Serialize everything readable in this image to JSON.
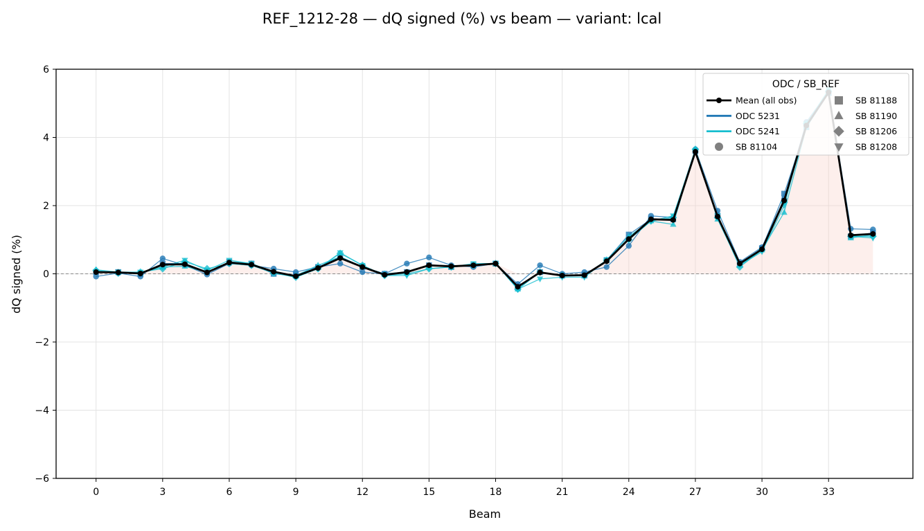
{
  "chart_data": {
    "type": "line",
    "title": "REF_1212-28  —  dQ signed (%) vs beam  —  variant: lcal",
    "xlabel": "Beam",
    "ylabel": "dQ signed (%)",
    "xlim": [
      -1.8,
      36.8
    ],
    "ylim": [
      -6,
      6
    ],
    "xticks": [
      0,
      3,
      6,
      9,
      12,
      15,
      18,
      21,
      24,
      27,
      30,
      33
    ],
    "yticks": [
      -6,
      -4,
      -2,
      0,
      2,
      4,
      6
    ],
    "ytick_labels": [
      "−6",
      "−4",
      "−2",
      "0",
      "2",
      "4",
      "6"
    ],
    "grid": true,
    "zero_line": true,
    "legend_placement": "upper right",
    "legend_title": "ODC / SB_REF",
    "legend": [
      {
        "label": "Mean (all obs)",
        "kind": "mean"
      },
      {
        "label": "ODC 5231",
        "kind": "line",
        "color": "#1f77b4"
      },
      {
        "label": "ODC 5241",
        "kind": "line",
        "color": "#17becf"
      },
      {
        "label": "SB 81104",
        "kind": "marker",
        "marker": "circle"
      },
      {
        "label": "SB 81188",
        "kind": "marker",
        "marker": "square"
      },
      {
        "label": "SB 81190",
        "kind": "marker",
        "marker": "triangle-up"
      },
      {
        "label": "SB 81206",
        "kind": "marker",
        "marker": "diamond"
      },
      {
        "label": "SB 81208",
        "kind": "marker",
        "marker": "triangle-down"
      }
    ],
    "x": [
      0,
      1,
      2,
      3,
      4,
      5,
      6,
      7,
      8,
      9,
      10,
      11,
      12,
      13,
      14,
      15,
      16,
      17,
      18,
      19,
      20,
      21,
      22,
      23,
      24,
      25,
      26,
      27,
      28,
      29,
      30,
      31,
      32,
      33,
      34,
      35
    ],
    "series": [
      {
        "name": "ODC 5231",
        "sb": "SB 81104",
        "color": "#1f77b4",
        "marker": "circle",
        "values": [
          -0.08,
          0.02,
          -0.08,
          0.45,
          0.25,
          -0.02,
          0.3,
          0.25,
          0.15,
          0.05,
          0.2,
          0.3,
          0.05,
          0.0,
          0.3,
          0.48,
          0.25,
          0.2,
          0.3,
          -0.3,
          0.25,
          0.0,
          0.05,
          0.2,
          0.82,
          1.7,
          1.65,
          3.65,
          1.85,
          0.35,
          0.78,
          2.2,
          4.45,
          5.35,
          1.32,
          1.3
        ]
      },
      {
        "name": "ODC 5231",
        "sb": "SB 81188",
        "color": "#1f77b4",
        "marker": "square",
        "values": [
          0.05,
          0.05,
          0.0,
          0.3,
          0.3,
          0.05,
          0.35,
          0.3,
          0.0,
          -0.05,
          0.2,
          0.5,
          0.2,
          0.0,
          0.05,
          0.25,
          0.2,
          0.25,
          0.3,
          -0.4,
          0.05,
          -0.05,
          -0.05,
          0.4,
          1.15,
          1.6,
          1.6,
          3.6,
          1.7,
          0.3,
          0.75,
          2.35,
          4.3,
          5.3,
          1.1,
          1.2
        ]
      },
      {
        "name": "ODC 5241",
        "sb": "SB 81190",
        "color": "#17becf",
        "marker": "triangle-up",
        "values": [
          0.12,
          0.05,
          0.02,
          0.2,
          0.22,
          0.05,
          0.35,
          0.3,
          0.05,
          -0.05,
          0.25,
          0.5,
          0.2,
          0.0,
          0.05,
          0.25,
          0.2,
          0.25,
          0.3,
          -0.45,
          0.05,
          -0.05,
          -0.05,
          0.4,
          1.1,
          1.55,
          1.45,
          3.65,
          1.6,
          0.25,
          0.7,
          1.8,
          4.3,
          5.3,
          1.05,
          1.15
        ]
      },
      {
        "name": "ODC 5241",
        "sb": "SB 81206",
        "color": "#17becf",
        "marker": "diamond",
        "values": [
          0.1,
          0.02,
          0.05,
          0.15,
          0.35,
          0.15,
          0.3,
          0.25,
          0.02,
          -0.1,
          0.15,
          0.6,
          0.25,
          -0.05,
          0.0,
          0.15,
          0.2,
          0.25,
          0.3,
          -0.45,
          0.05,
          -0.05,
          -0.05,
          0.4,
          1.0,
          1.55,
          1.65,
          3.65,
          1.65,
          0.2,
          0.7,
          2.1,
          4.4,
          5.35,
          1.1,
          1.1
        ]
      },
      {
        "name": "ODC 5241",
        "sb": "SB 81208",
        "color": "#17becf",
        "marker": "triangle-down",
        "values": [
          0.05,
          0.05,
          0.05,
          0.2,
          0.4,
          0.1,
          0.4,
          0.3,
          0.05,
          -0.1,
          0.15,
          0.62,
          0.25,
          -0.05,
          -0.05,
          0.15,
          0.2,
          0.3,
          0.3,
          -0.45,
          -0.15,
          -0.1,
          -0.1,
          0.4,
          1.0,
          1.55,
          1.7,
          3.6,
          1.7,
          0.25,
          0.65,
          2.0,
          4.4,
          5.4,
          1.1,
          1.05
        ]
      }
    ],
    "mean": {
      "name": "Mean (all obs)",
      "color": "#000000",
      "values": [
        0.05,
        0.04,
        0.01,
        0.27,
        0.28,
        0.04,
        0.33,
        0.27,
        0.06,
        -0.07,
        0.17,
        0.46,
        0.2,
        -0.03,
        0.05,
        0.25,
        0.22,
        0.25,
        0.3,
        -0.38,
        0.04,
        -0.05,
        -0.04,
        0.37,
        1.02,
        1.6,
        1.58,
        3.58,
        1.68,
        0.3,
        0.72,
        2.15,
        4.35,
        5.32,
        1.13,
        1.17
      ]
    }
  }
}
